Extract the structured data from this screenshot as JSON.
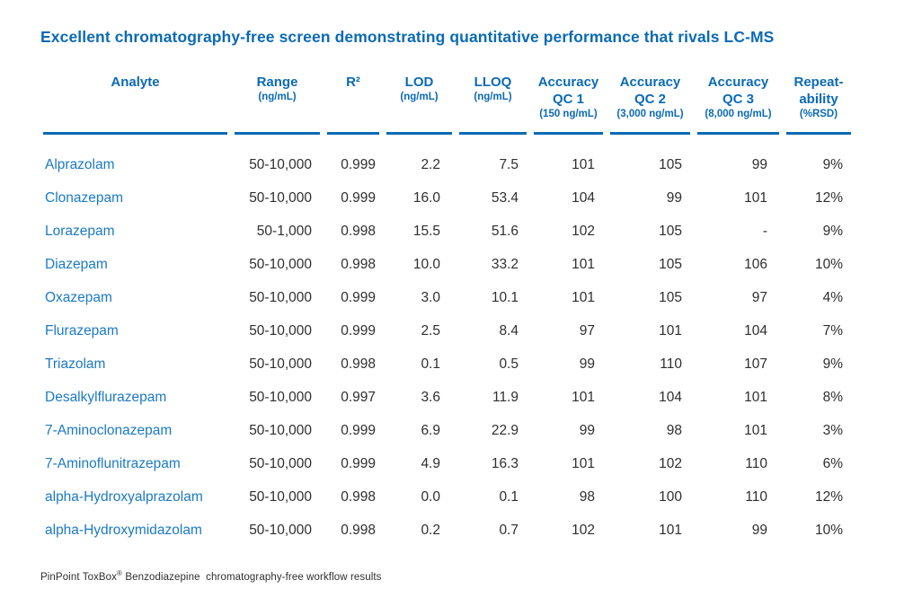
{
  "title": "Excellent chromatography-free screen demonstrating quantitative performance that rivals LC-MS",
  "colors": {
    "header_blue": "#0b6ab4",
    "analyte_blue": "#1b7ac4",
    "data_text": "#2f2f2f"
  },
  "table": {
    "columns": [
      {
        "line1": "Analyte",
        "line2": "",
        "unit": ""
      },
      {
        "line1": "Range",
        "line2": "",
        "unit": "(ng/mL)"
      },
      {
        "line1": "R²",
        "line2": "",
        "unit": ""
      },
      {
        "line1": "LOD",
        "line2": "",
        "unit": "(ng/mL)"
      },
      {
        "line1": "LLOQ",
        "line2": "",
        "unit": "(ng/mL)"
      },
      {
        "line1": "Accuracy",
        "line2": "QC 1",
        "unit": "(150 ng/mL)"
      },
      {
        "line1": "Accuracy",
        "line2": "QC 2",
        "unit": "(3,000 ng/mL)"
      },
      {
        "line1": "Accuracy",
        "line2": "QC 3",
        "unit": "(8,000 ng/mL)"
      },
      {
        "line1": "Repeat-",
        "line2": "ability",
        "unit": "(%RSD)"
      }
    ],
    "rows": [
      {
        "analyte": "Alprazolam",
        "range": "50-10,000",
        "r2": "0.999",
        "lod": "2.2",
        "lloq": "7.5",
        "qc1": "101",
        "qc2": "105",
        "qc3": "99",
        "rsd": "9%"
      },
      {
        "analyte": "Clonazepam",
        "range": "50-10,000",
        "r2": "0.999",
        "lod": "16.0",
        "lloq": "53.4",
        "qc1": "104",
        "qc2": "99",
        "qc3": "101",
        "rsd": "12%"
      },
      {
        "analyte": "Lorazepam",
        "range": "50-1,000",
        "r2": "0.998",
        "lod": "15.5",
        "lloq": "51.6",
        "qc1": "102",
        "qc2": "105",
        "qc3": "-",
        "rsd": "9%"
      },
      {
        "analyte": "Diazepam",
        "range": "50-10,000",
        "r2": "0.998",
        "lod": "10.0",
        "lloq": "33.2",
        "qc1": "101",
        "qc2": "105",
        "qc3": "106",
        "rsd": "10%"
      },
      {
        "analyte": "Oxazepam",
        "range": "50-10,000",
        "r2": "0.999",
        "lod": "3.0",
        "lloq": "10.1",
        "qc1": "101",
        "qc2": "105",
        "qc3": "97",
        "rsd": "4%"
      },
      {
        "analyte": "Flurazepam",
        "range": "50-10,000",
        "r2": "0.999",
        "lod": "2.5",
        "lloq": "8.4",
        "qc1": "97",
        "qc2": "101",
        "qc3": "104",
        "rsd": "7%"
      },
      {
        "analyte": "Triazolam",
        "range": "50-10,000",
        "r2": "0.998",
        "lod": "0.1",
        "lloq": "0.5",
        "qc1": "99",
        "qc2": "110",
        "qc3": "107",
        "rsd": "9%"
      },
      {
        "analyte": "Desalkylflurazepam",
        "range": "50-10,000",
        "r2": "0.997",
        "lod": "3.6",
        "lloq": "11.9",
        "qc1": "101",
        "qc2": "104",
        "qc3": "101",
        "rsd": "8%"
      },
      {
        "analyte": "7-Aminoclonazepam",
        "range": "50-10,000",
        "r2": "0.999",
        "lod": "6.9",
        "lloq": "22.9",
        "qc1": "99",
        "qc2": "98",
        "qc3": "101",
        "rsd": "3%"
      },
      {
        "analyte": "7-Aminoflunitrazepam",
        "range": "50-10,000",
        "r2": "0.999",
        "lod": "4.9",
        "lloq": "16.3",
        "qc1": "101",
        "qc2": "102",
        "qc3": "110",
        "rsd": "6%"
      },
      {
        "analyte": "alpha-Hydroxyalprazolam",
        "range": "50-10,000",
        "r2": "0.998",
        "lod": "0.0",
        "lloq": "0.1",
        "qc1": "98",
        "qc2": "100",
        "qc3": "110",
        "rsd": "12%"
      },
      {
        "analyte": "alpha-Hydroxymidazolam",
        "range": "50-10,000",
        "r2": "0.998",
        "lod": "0.2",
        "lloq": "0.7",
        "qc1": "102",
        "qc2": "101",
        "qc3": "99",
        "rsd": "10%"
      }
    ]
  },
  "footer": {
    "product": "PinPoint ToxBox",
    "reg_mark": "®",
    "rest": " Benzodiazepine  chromatography-free workflow results"
  }
}
